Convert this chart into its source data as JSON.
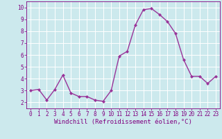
{
  "x": [
    0,
    1,
    2,
    3,
    4,
    5,
    6,
    7,
    8,
    9,
    10,
    11,
    12,
    13,
    14,
    15,
    16,
    17,
    18,
    19,
    20,
    21,
    22,
    23
  ],
  "y": [
    3.0,
    3.1,
    2.2,
    3.1,
    4.3,
    2.8,
    2.5,
    2.5,
    2.2,
    2.1,
    3.0,
    5.9,
    6.3,
    8.5,
    9.8,
    9.9,
    9.4,
    8.8,
    7.8,
    5.6,
    4.2,
    4.2,
    3.6,
    4.2
  ],
  "line_color": "#993399",
  "marker": "D",
  "marker_size": 2.0,
  "bg_color": "#cce9ed",
  "grid_color": "#ffffff",
  "xlabel": "Windchill (Refroidissement éolien,°C)",
  "xlim": [
    -0.5,
    23.5
  ],
  "ylim": [
    1.5,
    10.5
  ],
  "yticks": [
    2,
    3,
    4,
    5,
    6,
    7,
    8,
    9,
    10
  ],
  "xticks": [
    0,
    1,
    2,
    3,
    4,
    5,
    6,
    7,
    8,
    9,
    10,
    11,
    12,
    13,
    14,
    15,
    16,
    17,
    18,
    19,
    20,
    21,
    22,
    23
  ],
  "label_color": "#800080",
  "tick_fontsize": 5.5,
  "xlabel_fontsize": 6.5
}
